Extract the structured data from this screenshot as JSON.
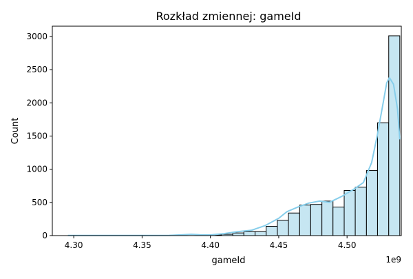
{
  "chart_data": {
    "type": "bar",
    "title": "Rozkład zmiennej: gameId",
    "xlabel": "gameId",
    "ylabel": "Count",
    "x_offset_label": "1e9",
    "xlim": [
      4.2843,
      4.5397
    ],
    "ylim": [
      0,
      3155
    ],
    "x_ticks": [
      {
        "value": 4.3,
        "label": "4.30"
      },
      {
        "value": 4.35,
        "label": "4.35"
      },
      {
        "value": 4.4,
        "label": "4.40"
      },
      {
        "value": 4.45,
        "label": "4.45"
      },
      {
        "value": 4.5,
        "label": "4.50"
      }
    ],
    "y_ticks": [
      {
        "value": 0,
        "label": "0"
      },
      {
        "value": 500,
        "label": "500"
      },
      {
        "value": 1000,
        "label": "1000"
      },
      {
        "value": 1500,
        "label": "1500"
      },
      {
        "value": 2000,
        "label": "2000"
      },
      {
        "value": 2500,
        "label": "2500"
      },
      {
        "value": 3000,
        "label": "3000"
      }
    ],
    "bars": [
      {
        "x0": 4.4001,
        "x1": 4.4082,
        "value": 10
      },
      {
        "x0": 4.4082,
        "x1": 4.4164,
        "value": 20
      },
      {
        "x0": 4.4164,
        "x1": 4.4245,
        "value": 40
      },
      {
        "x0": 4.4245,
        "x1": 4.4327,
        "value": 60
      },
      {
        "x0": 4.4327,
        "x1": 4.4408,
        "value": 60
      },
      {
        "x0": 4.4408,
        "x1": 4.449,
        "value": 140
      },
      {
        "x0": 4.449,
        "x1": 4.4571,
        "value": 230
      },
      {
        "x0": 4.4571,
        "x1": 4.4653,
        "value": 340
      },
      {
        "x0": 4.4653,
        "x1": 4.4734,
        "value": 460
      },
      {
        "x0": 4.4734,
        "x1": 4.4816,
        "value": 470
      },
      {
        "x0": 4.4816,
        "x1": 4.4897,
        "value": 520
      },
      {
        "x0": 4.4897,
        "x1": 4.4979,
        "value": 430
      },
      {
        "x0": 4.4979,
        "x1": 4.506,
        "value": 680
      },
      {
        "x0": 4.506,
        "x1": 4.5142,
        "value": 730
      },
      {
        "x0": 4.5142,
        "x1": 4.5223,
        "value": 980
      },
      {
        "x0": 4.5223,
        "x1": 4.5305,
        "value": 1700
      },
      {
        "x0": 4.5305,
        "x1": 4.5386,
        "value": 3010
      }
    ],
    "kde": {
      "x": [
        4.2957,
        4.32,
        4.35,
        4.37,
        4.38,
        4.386,
        4.392,
        4.4,
        4.41,
        4.42,
        4.43,
        4.44,
        4.45,
        4.456,
        4.464,
        4.472,
        4.48,
        4.487,
        4.496,
        4.505,
        4.512,
        4.518,
        4.522,
        4.526,
        4.529,
        4.531,
        4.534,
        4.537,
        4.5386
      ],
      "y": [
        3,
        2,
        2,
        4,
        12,
        20,
        12,
        10,
        30,
        60,
        80,
        150,
        260,
        360,
        430,
        490,
        520,
        500,
        590,
        700,
        800,
        1100,
        1500,
        1950,
        2300,
        2380,
        2280,
        1900,
        1450
      ]
    },
    "colors": {
      "bar_fill": "#c6e6f2",
      "bar_edge": "#000000",
      "kde_line": "#87ceeb"
    }
  }
}
